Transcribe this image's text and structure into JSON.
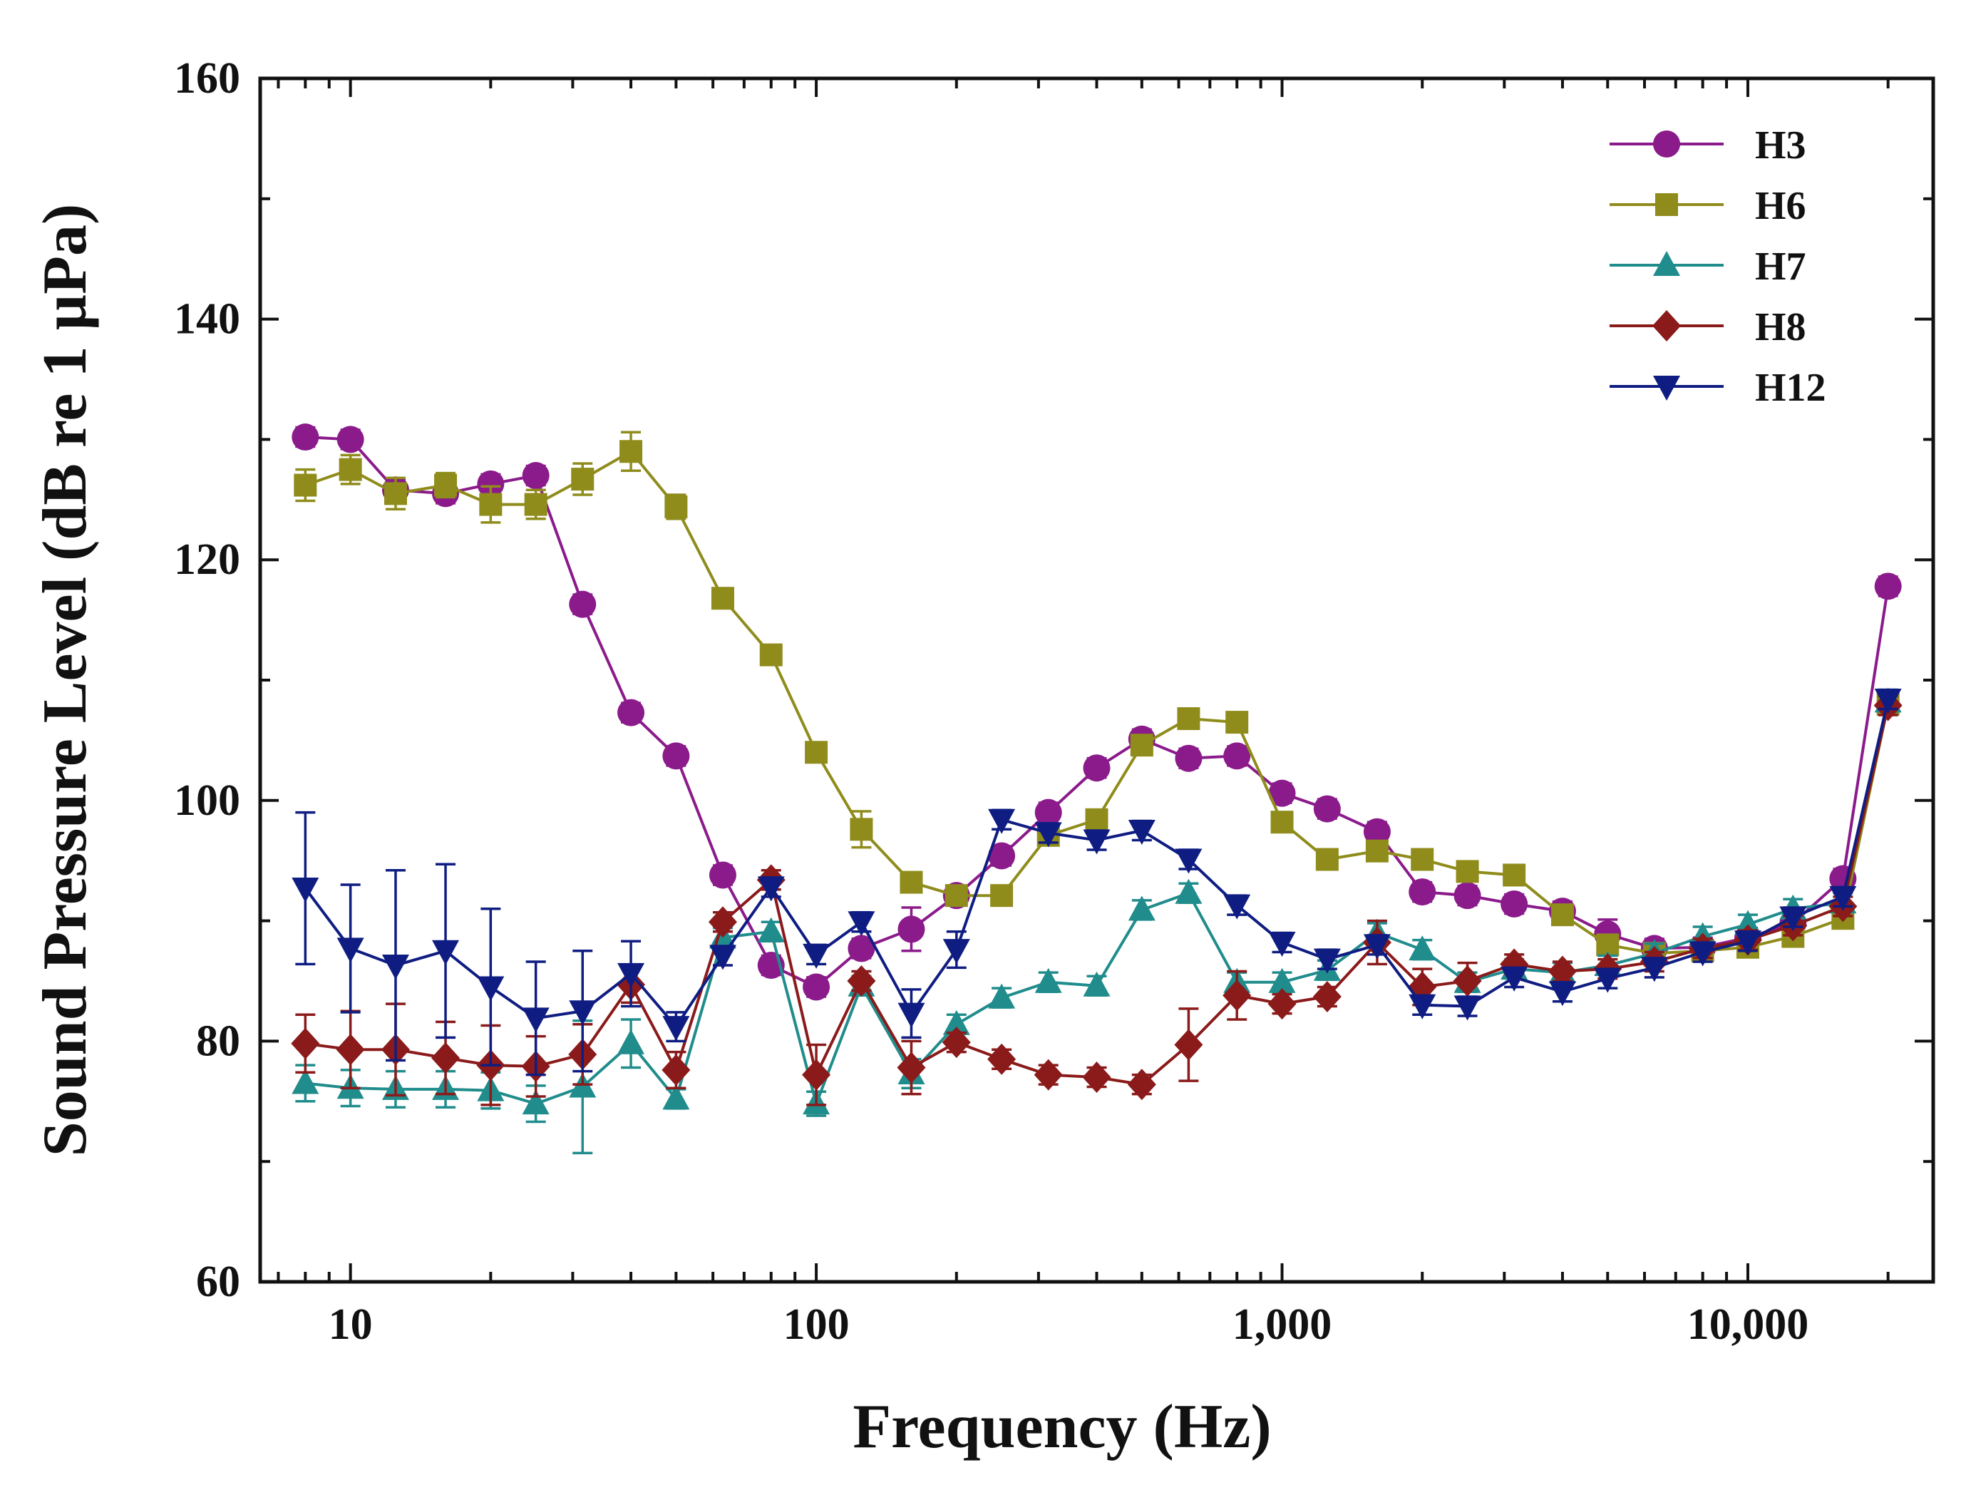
{
  "chart_data": {
    "type": "line",
    "xlabel": "Frequency (Hz)",
    "ylabel": "Sound Pressure Level (dB re 1 µPa)",
    "xscale": "log",
    "xlim": [
      6.4,
      25000
    ],
    "ylim": [
      60,
      160
    ],
    "x_ticks": [
      10,
      100,
      1000,
      10000
    ],
    "x_tick_labels": [
      "10",
      "100",
      "1,000",
      "10,000"
    ],
    "y_ticks": [
      60,
      80,
      100,
      120,
      140,
      160
    ],
    "y_tick_labels": [
      "60",
      "80",
      "100",
      "120",
      "140",
      "160"
    ],
    "legend_position": "top-right",
    "x": [
      8,
      10,
      12.5,
      16,
      20,
      25,
      31.5,
      40,
      50,
      63,
      80,
      100,
      125,
      160,
      200,
      250,
      315,
      400,
      500,
      630,
      800,
      1000,
      1250,
      1600,
      2000,
      2500,
      3150,
      4000,
      5000,
      6300,
      8000,
      10000,
      12500,
      16000,
      20000
    ],
    "series": [
      {
        "name": "H3",
        "color": "#8b1a8b",
        "marker": "circle",
        "values": [
          130.2,
          130.0,
          125.8,
          125.5,
          126.3,
          127.0,
          116.3,
          107.3,
          103.7,
          93.8,
          86.3,
          84.5,
          87.7,
          89.3,
          92.1,
          95.4,
          99.0,
          102.7,
          105.1,
          103.5,
          103.7,
          100.6,
          99.3,
          97.4,
          92.4,
          92.1,
          91.4,
          90.8,
          88.9,
          87.7,
          87.8,
          88.6,
          89.8,
          93.5,
          117.8
        ],
        "err": [
          0.8,
          0.8,
          0.8,
          0.8,
          0.8,
          0.8,
          0.8,
          0.8,
          0.8,
          0.8,
          0.8,
          0.8,
          0.8,
          1.8,
          0.8,
          0.8,
          0.8,
          0.8,
          0.8,
          0.8,
          0.8,
          0.8,
          0.8,
          0.8,
          0.8,
          0.8,
          0.8,
          0.8,
          1.2,
          0.8,
          0.8,
          0.8,
          0.8,
          0.8,
          0.8
        ]
      },
      {
        "name": "H6",
        "color": "#8f8c1c",
        "marker": "square",
        "values": [
          126.2,
          127.5,
          125.5,
          126.2,
          124.6,
          124.6,
          126.7,
          129.0,
          124.4,
          116.8,
          112.1,
          104.0,
          97.6,
          93.2,
          92.1,
          92.1,
          97.1,
          98.4,
          104.6,
          106.8,
          106.5,
          98.2,
          95.1,
          95.8,
          95.1,
          94.1,
          93.8,
          90.5,
          88.0,
          87.3,
          87.5,
          87.8,
          88.7,
          90.2,
          108.0
        ],
        "err": [
          1.3,
          1.2,
          1.3,
          1.0,
          1.5,
          1.2,
          1.3,
          1.6,
          1.0,
          0.8,
          0.8,
          0.8,
          1.5,
          0.8,
          0.8,
          0.8,
          0.8,
          0.8,
          0.8,
          0.8,
          0.8,
          0.8,
          0.8,
          0.8,
          0.8,
          0.8,
          0.8,
          0.8,
          0.8,
          0.8,
          0.8,
          0.8,
          0.8,
          0.8,
          0.8
        ]
      },
      {
        "name": "H7",
        "color": "#208c8c",
        "marker": "triangle-up",
        "values": [
          76.5,
          76.1,
          76.0,
          76.0,
          75.9,
          74.8,
          76.2,
          79.8,
          75.2,
          88.6,
          89.1,
          74.8,
          84.6,
          77.3,
          81.4,
          83.6,
          84.9,
          84.6,
          90.9,
          92.3,
          84.9,
          84.9,
          85.9,
          89.0,
          87.6,
          84.9,
          86.0,
          85.7,
          86.3,
          87.3,
          88.7,
          89.7,
          91.0,
          91.5,
          108.2
        ],
        "err": [
          1.5,
          1.5,
          1.5,
          1.5,
          1.5,
          1.5,
          5.5,
          2.0,
          0.8,
          0.8,
          0.8,
          1.0,
          0.8,
          1.2,
          0.8,
          0.8,
          0.8,
          0.8,
          0.8,
          0.8,
          0.8,
          0.8,
          0.8,
          0.8,
          0.8,
          0.8,
          0.8,
          0.8,
          0.8,
          0.8,
          0.8,
          0.8,
          0.8,
          0.8,
          0.8
        ]
      },
      {
        "name": "H8",
        "color": "#8b1a1a",
        "marker": "diamond",
        "values": [
          79.8,
          79.3,
          79.3,
          78.6,
          78.0,
          77.9,
          78.9,
          84.7,
          77.6,
          89.9,
          93.4,
          77.2,
          85.0,
          77.8,
          79.9,
          78.5,
          77.2,
          77.0,
          76.4,
          79.7,
          83.8,
          83.1,
          83.7,
          88.2,
          84.5,
          85.0,
          86.4,
          85.8,
          86.0,
          86.6,
          87.7,
          88.4,
          89.6,
          91.2,
          107.9
        ],
        "err": [
          2.4,
          3.2,
          3.8,
          3.0,
          3.3,
          2.5,
          2.5,
          1.5,
          1.5,
          0.8,
          0.8,
          2.5,
          0.8,
          2.2,
          0.8,
          0.8,
          0.8,
          0.8,
          0.8,
          3.0,
          2.0,
          0.8,
          0.8,
          1.8,
          1.5,
          1.5,
          0.8,
          0.8,
          0.8,
          0.8,
          0.8,
          0.8,
          0.8,
          0.8,
          0.8
        ]
      },
      {
        "name": "H12",
        "color": "#0f1d82",
        "marker": "triangle-down",
        "values": [
          92.7,
          87.7,
          86.3,
          87.5,
          84.5,
          81.9,
          82.5,
          85.6,
          81.2,
          87.1,
          92.8,
          87.2,
          89.9,
          82.3,
          87.6,
          98.4,
          97.3,
          96.7,
          97.5,
          95.1,
          91.3,
          88.2,
          86.8,
          88.0,
          83.0,
          82.9,
          85.3,
          84.1,
          85.2,
          86.1,
          87.4,
          88.3,
          90.3,
          92.0,
          108.4
        ],
        "err": [
          6.3,
          5.3,
          7.9,
          7.2,
          6.5,
          4.7,
          5.0,
          2.7,
          1.2,
          0.8,
          0.8,
          0.8,
          0.8,
          2.0,
          1.5,
          0.8,
          0.8,
          0.8,
          0.8,
          0.8,
          0.8,
          0.8,
          0.8,
          0.8,
          0.8,
          0.8,
          0.8,
          0.8,
          0.8,
          0.8,
          0.8,
          0.8,
          0.8,
          0.8,
          0.8
        ]
      }
    ]
  }
}
